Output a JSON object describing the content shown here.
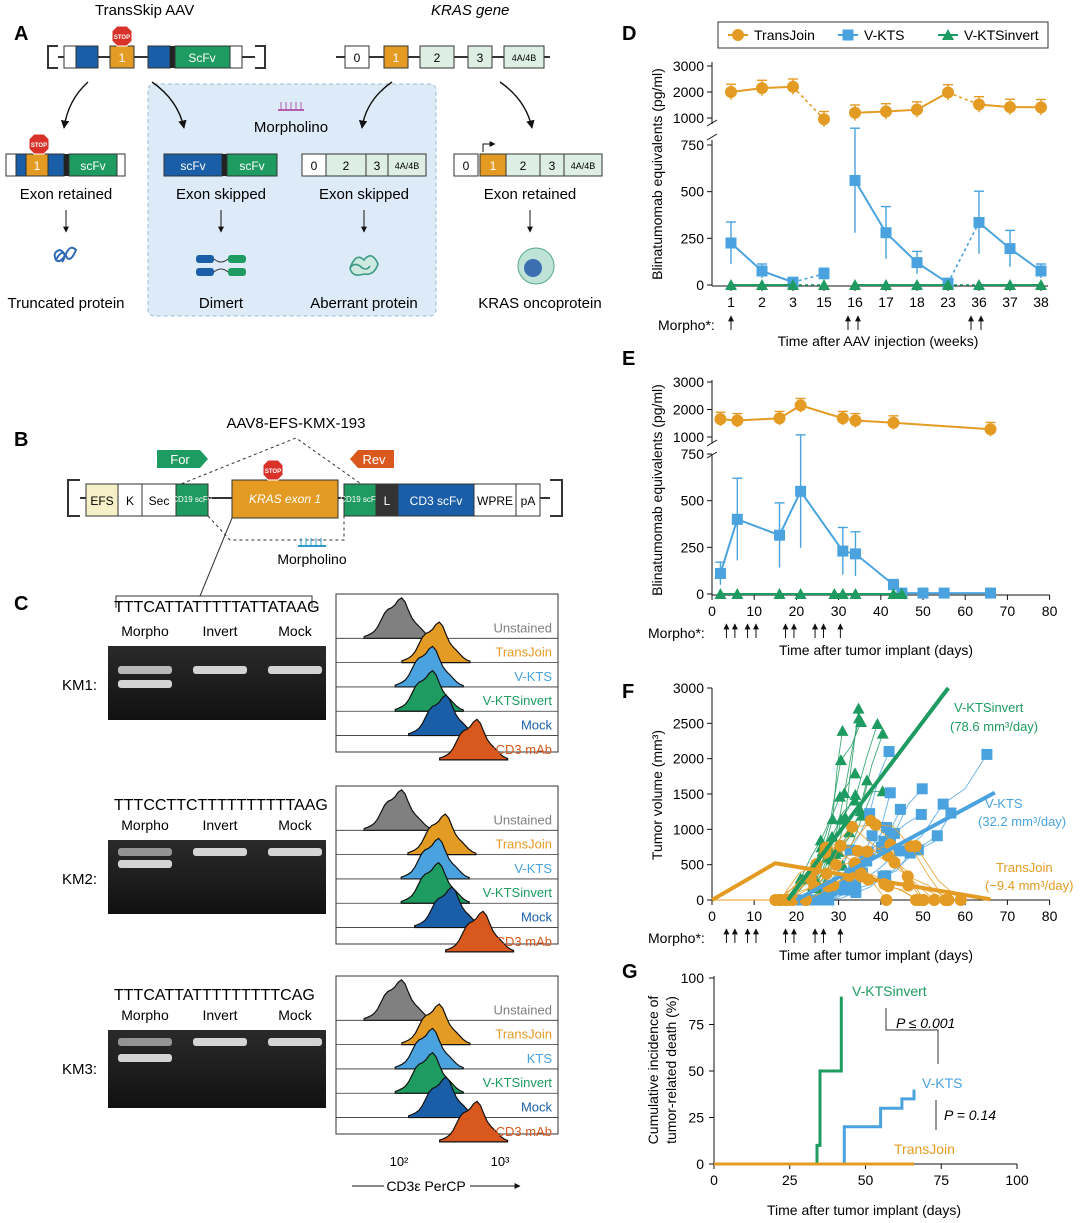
{
  "panels": {
    "A": "A",
    "B": "B",
    "C": "C",
    "D": "D",
    "E": "E",
    "F": "F",
    "G": "G"
  },
  "colors": {
    "transjoin": "#E49B24",
    "vkts": "#4AA3DF",
    "vktsinvert": "#1E9B60",
    "dark": "#1B5EA8",
    "grey": "#8A8A8A",
    "orange": "#D9581E",
    "bluebox": "#DCEBF7"
  },
  "panel_a": {
    "title_left": "TransSkip AAV",
    "title_right": "KRAS gene",
    "stop": "STOP",
    "exon1": "1",
    "scfv_top": "ScFv",
    "exons_right": [
      "0",
      "1",
      "2",
      "3",
      "4A/4B"
    ],
    "morpholino": "Morpholino",
    "col1": {
      "box": [
        "scFv"
      ],
      "caption": "Exon retained",
      "result": "Truncated protein"
    },
    "col2": {
      "box": [
        "scFv",
        "scFv"
      ],
      "caption": "Exon skipped",
      "result": "Dimert"
    },
    "col3": {
      "box": [
        "0",
        "2",
        "3",
        "4A/4B"
      ],
      "caption": "Exon skipped",
      "result": "Aberrant protein"
    },
    "col4": {
      "box": [
        "0",
        "1",
        "2",
        "3",
        "4A/4B"
      ],
      "caption": "Exon retained",
      "result": "KRAS oncoprotein"
    }
  },
  "panel_b": {
    "title": "AAV8-EFS-KMX-193",
    "for": "For",
    "rev": "Rev",
    "segments": [
      "EFS",
      "K",
      "Sec",
      "CD19 scFv",
      "KRAS exon 1",
      "CD19 scFv",
      "L",
      "CD3 scFv",
      "WPRE",
      "pA"
    ],
    "morpholino": "Morpholino"
  },
  "panel_c": {
    "gel_headers": [
      "Morpho",
      "Invert",
      "Mock"
    ],
    "rows": [
      {
        "label": "KM1:",
        "seq": "TTTCATTATTTTTATTATAAG"
      },
      {
        "label": "KM2:",
        "seq": "TTTCCTTCTTTTTTTTTTAAG"
      },
      {
        "label": "KM3:",
        "seq": "TTTCATTATTTTTTTTTCAG"
      }
    ],
    "hist_labels_1": [
      "Unstained",
      "TransJoin",
      "V-KTS",
      "V-KTSinvert",
      "Mock",
      "αCD3 mAb"
    ],
    "hist_labels_3": [
      "Unstained",
      "TransJoin",
      "KTS",
      "V-KTSinvert",
      "Mock",
      "αCD3 mAb"
    ],
    "xticks": [
      "10²",
      "10³"
    ],
    "xlabel": "CD3ε PerCP"
  },
  "chart_data": [
    {
      "panel": "D",
      "type": "line",
      "legend": [
        "TransJoin",
        "V-KTS",
        "V-KTSinvert"
      ],
      "categories": [
        "1",
        "2",
        "3",
        "15",
        "16",
        "17",
        "18",
        "23",
        "36",
        "37",
        "38"
      ],
      "series": [
        {
          "name": "TransJoin",
          "values": [
            2000,
            2150,
            2200,
            950,
            1200,
            1250,
            1320,
            1980,
            1520,
            1420,
            1410
          ]
        },
        {
          "name": "V-KTS",
          "values": [
            225,
            75,
            15,
            60,
            560,
            280,
            120,
            10,
            335,
            195,
            75
          ]
        },
        {
          "name": "V-KTSinvert",
          "values": [
            0,
            0,
            0,
            0,
            0,
            0,
            0,
            0,
            0,
            0,
            0
          ]
        }
      ],
      "ylabel": "Blinatumomab equivalents (pg/ml)",
      "yticks_upper": [
        "1000",
        "2000",
        "3000"
      ],
      "yticks_lower": [
        "0",
        "250",
        "500",
        "750"
      ],
      "xlabel": "Time after AAV injection (weeks)",
      "morpho_label": "Morpho*:"
    },
    {
      "panel": "E",
      "type": "line",
      "series": [
        {
          "name": "TransJoin",
          "x": [
            2,
            6,
            16,
            21,
            31,
            34,
            43,
            66
          ],
          "values": [
            1650,
            1600,
            1680,
            2150,
            1680,
            1600,
            1520,
            1280
          ]
        },
        {
          "name": "V-KTS",
          "x": [
            2,
            6,
            16,
            21,
            31,
            34,
            43,
            45,
            50,
            55,
            66
          ],
          "values": [
            110,
            400,
            315,
            550,
            230,
            215,
            50,
            5,
            5,
            5,
            5
          ]
        },
        {
          "name": "V-KTSinvert",
          "x": [
            2,
            6,
            16,
            21,
            29,
            31,
            34,
            43,
            45
          ],
          "values": [
            0,
            0,
            0,
            0,
            0,
            0,
            0,
            0,
            0
          ]
        }
      ],
      "ylabel": "Blinatumomab equivalents (pg/ml)",
      "yticks_upper": [
        "1000",
        "2000",
        "3000"
      ],
      "yticks_lower": [
        "0",
        "250",
        "500",
        "750"
      ],
      "xticks": [
        "0",
        "10",
        "20",
        "30",
        "40",
        "50",
        "60",
        "70",
        "80"
      ],
      "xlabel": "Time after tumor implant (days)",
      "morpho_label": "Morpho*:"
    },
    {
      "panel": "F",
      "type": "line",
      "ylabel": "Tumor volume (mm³)",
      "yticks": [
        "0",
        "500",
        "1000",
        "1500",
        "2000",
        "2500",
        "3000"
      ],
      "xticks": [
        "0",
        "10",
        "20",
        "30",
        "40",
        "50",
        "60",
        "70",
        "80"
      ],
      "xlabel": "Time after tumor implant (days)",
      "fits": [
        {
          "name": "V-KTSinvert",
          "label1": "V-KTSinvert",
          "label2": "(78.6 mm³/day)"
        },
        {
          "name": "V-KTS",
          "label1": "V-KTS",
          "label2": "(32.2 mm³/day)"
        },
        {
          "name": "TransJoin",
          "label1": "TransJoin",
          "label2": "(−9.4 mm³/day)"
        }
      ],
      "morpho_label": "Morpho*:"
    },
    {
      "panel": "G",
      "type": "line",
      "ylabel1": "Cumulative incidence of",
      "ylabel2": "tumor-related death (%)",
      "yticks": [
        "0",
        "25",
        "50",
        "75",
        "100"
      ],
      "xticks": [
        "0",
        "25",
        "50",
        "75",
        "100"
      ],
      "xlabel": "Time after tumor implant (days)",
      "series": [
        {
          "name": "V-KTSinvert",
          "x": [
            0,
            34,
            34,
            35,
            35,
            42,
            42
          ],
          "values": [
            0,
            0,
            10,
            10,
            50,
            50,
            90
          ]
        },
        {
          "name": "V-KTS",
          "x": [
            0,
            43,
            43,
            55,
            55,
            62,
            62,
            66,
            66
          ],
          "values": [
            0,
            0,
            20,
            20,
            30,
            30,
            35,
            35,
            40
          ]
        },
        {
          "name": "TransJoin",
          "x": [
            0,
            66
          ],
          "values": [
            0,
            0
          ]
        }
      ],
      "labels": {
        "invert": "V-KTSinvert",
        "vkts": "V-KTS",
        "transjoin": "TransJoin"
      },
      "stats": [
        "P ≤ 0.001",
        "P = 0.14"
      ]
    }
  ]
}
